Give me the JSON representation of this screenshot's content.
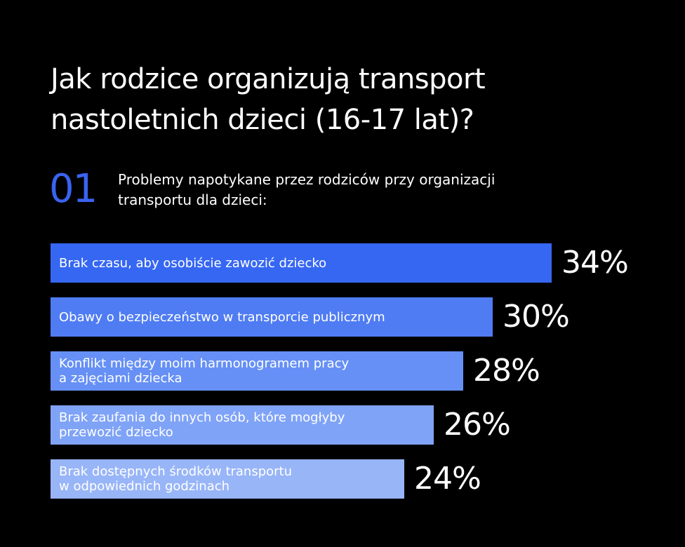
{
  "title": {
    "line1": "Jak rodzice organizują transport",
    "line2": "nastoletnich dzieci (16-17 lat)?"
  },
  "section": {
    "number": "01",
    "text_line1": "Problemy napotykane przez rodziców przy organizacji",
    "text_line2": "transportu dla dzieci:"
  },
  "colors": {
    "accent": "#3a63f0",
    "background": "#000000",
    "bars": [
      "#3667f2",
      "#4f7cf3",
      "#6690f5",
      "#7fa3f7",
      "#98b5f8"
    ]
  },
  "chart_data": {
    "type": "bar",
    "orientation": "horizontal",
    "categories": [
      [
        "Brak czasu, aby osobiście zawozić dziecko"
      ],
      [
        "Obawy o bezpieczeństwo w transporcie publicznym"
      ],
      [
        "Konflikt między moim harmonogramem pracy",
        "a zajęciami dziecka"
      ],
      [
        "Brak zaufania do innych osób, które mogłyby",
        "przewozić dziecko"
      ],
      [
        "Brak dostępnych środków transportu",
        "w odpowiednich godzinach"
      ]
    ],
    "values": [
      34,
      30,
      28,
      26,
      24
    ],
    "value_labels": [
      "34%",
      "30%",
      "28%",
      "26%",
      "24%"
    ],
    "unit": "%",
    "grid": false,
    "legend": "none"
  }
}
